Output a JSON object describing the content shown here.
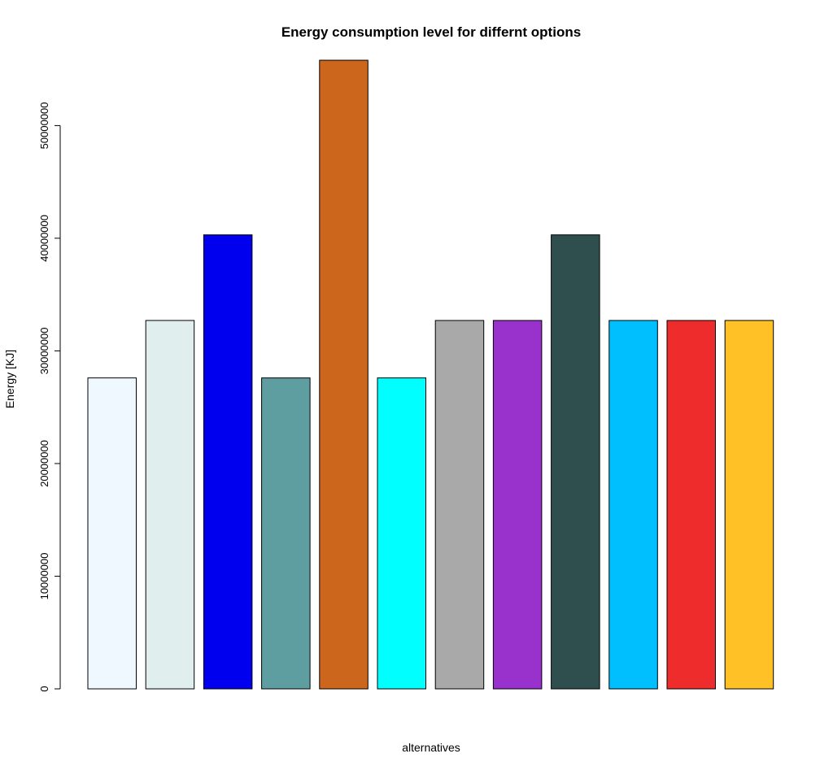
{
  "chart_data": {
    "type": "bar",
    "title": "Energy consumption level for differnt options",
    "xlabel": "alternatives",
    "ylabel": "Energy [KJ]",
    "ylim": [
      0,
      56000000
    ],
    "yticks": [
      0,
      10000000,
      20000000,
      30000000,
      40000000,
      50000000
    ],
    "ytick_labels": [
      "0",
      "10000000",
      "20000000",
      "30000000",
      "40000000",
      "50000000"
    ],
    "grid": false,
    "legend": "none",
    "values": [
      27600000,
      32700000,
      40300000,
      27600000,
      55800000,
      27600000,
      32700000,
      32700000,
      40300000,
      32700000,
      32700000,
      32700000
    ],
    "colors": [
      "#f0f8ff",
      "#e0eeee",
      "#0000ee",
      "#5f9ea0",
      "#cd661d",
      "#00ffff",
      "#a9a9a9",
      "#9932cc",
      "#2f4f4f",
      "#00bfff",
      "#ee2c2c",
      "#ffc125"
    ]
  }
}
